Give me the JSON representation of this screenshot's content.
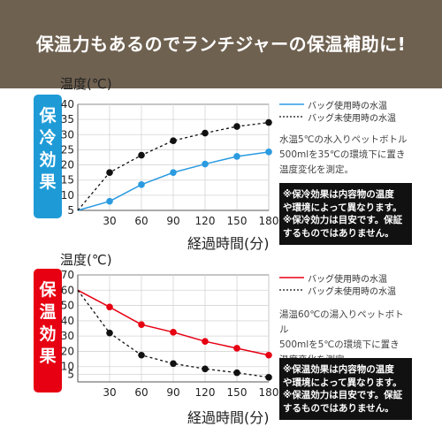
{
  "banner": {
    "text": "保温力もあるのでランチジャーの保温補助に!",
    "bg": "#6f6150"
  },
  "charts": [
    {
      "badge": [
        "保",
        "冷",
        "効",
        "果"
      ],
      "badge_color": "#1e9bd7",
      "ylabel": "温度(℃)",
      "xlabel": "経過時間(分)",
      "legend": [
        "バッグ使用時の水温",
        "バッグ未使用時の水温"
      ],
      "description": [
        "水温5℃の水入りペットボトル",
        "500mlを35℃の環境下に置き",
        "温度変化を測定。"
      ],
      "notes": [
        "※保冷効果は内容物の温度",
        "や環境によって異なります。",
        "※保冷効力は目安です。保証",
        "するものではありません。"
      ]
    },
    {
      "badge": [
        "保",
        "温",
        "効",
        "果"
      ],
      "badge_color": "#e60012",
      "ylabel": "温度(℃)",
      "xlabel": "経過時間(分)",
      "legend": [
        "バッグ使用時の水温",
        "バッグ未使用時の水温"
      ],
      "description": [
        "湯温60℃の湯入りペットボトル",
        "500mlを5℃の環境下に置き",
        "温度変化を測定。"
      ],
      "notes": [
        "※保温効果は内容物の温度",
        "や環境によって異なります。",
        "※保温効力は目安です。保証",
        "するものではありません。"
      ]
    }
  ],
  "chart_data": [
    {
      "type": "line",
      "x": [
        0,
        30,
        60,
        90,
        120,
        150,
        180
      ],
      "series": [
        {
          "name": "バッグ使用時の水温",
          "values": [
            5,
            8,
            13.5,
            17.5,
            20.3,
            22.8,
            24.3
          ],
          "color": "#2b9be0",
          "style": "solid"
        },
        {
          "name": "バッグ未使用時の水温",
          "values": [
            5,
            17.5,
            23.2,
            28,
            30.5,
            32.7,
            34
          ],
          "color": "#111111",
          "style": "dashed"
        }
      ],
      "xticks": [
        30,
        60,
        90,
        120,
        150,
        180
      ],
      "yticks": [
        5,
        10,
        15,
        20,
        25,
        30,
        35,
        40
      ],
      "xlim": [
        0,
        180
      ],
      "ylim": [
        5,
        40
      ],
      "ylabel": "温度(℃)",
      "xlabel": "経過時間(分)",
      "grid": true,
      "legend_position": "right"
    },
    {
      "type": "line",
      "x": [
        0,
        30,
        60,
        90,
        120,
        150,
        180
      ],
      "series": [
        {
          "name": "バッグ使用時の水温",
          "values": [
            60,
            49,
            37.5,
            32.5,
            26.5,
            22,
            17.5
          ],
          "color": "#e60012",
          "style": "solid"
        },
        {
          "name": "バッグ未使用時の水温",
          "values": [
            60,
            32,
            17.5,
            12,
            8.5,
            6,
            3
          ],
          "color": "#111111",
          "style": "dashed"
        }
      ],
      "xticks": [
        30,
        60,
        90,
        120,
        150,
        180
      ],
      "yticks": [
        5,
        10,
        20,
        30,
        40,
        50,
        60,
        70
      ],
      "xlim": [
        0,
        180
      ],
      "ylim": [
        0,
        70
      ],
      "ylabel": "温度(℃)",
      "xlabel": "経過時間(分)",
      "grid": true,
      "legend_position": "right"
    }
  ]
}
